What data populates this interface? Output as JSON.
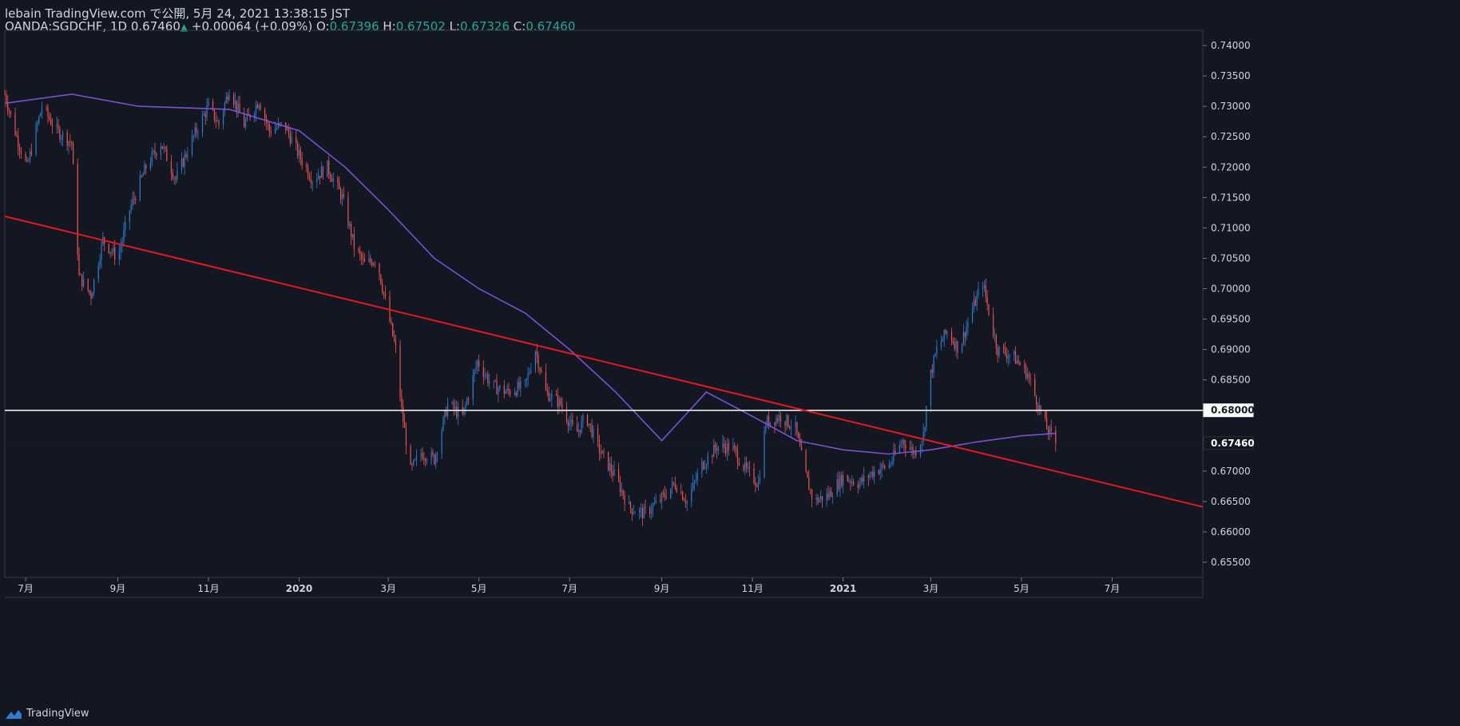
{
  "header": {
    "line1": "lebain TradingView.com で公開, 5月 24, 2021 13:38:15 JST",
    "symbol": "OANDA:SGDCHF, 1D",
    "last": "0.67460",
    "up_arrow": "▲",
    "change": "+0.00064 (+0.09%)",
    "o_label": "O:",
    "o_value": "0.67396",
    "h_label": "H:",
    "h_value": "0.67502",
    "l_label": "L:",
    "l_value": "0.67326",
    "c_label": "C:",
    "c_value": "0.67460"
  },
  "footer": {
    "brand": "TradingView"
  },
  "colors": {
    "background": "#131722",
    "up": "#2e7dd1",
    "down": "#ef5350",
    "ma": "#7b4fd6",
    "trendline": "#e8171f",
    "hline": "#ffffff",
    "grid_border": "#363a45"
  },
  "chart_data": {
    "type": "candlestick",
    "symbol": "OANDA:SGDCHF",
    "timeframe": "1D",
    "ylim": [
      0.6525,
      0.7425
    ],
    "y_ticks": [
      "0.74000",
      "0.73500",
      "0.73000",
      "0.72500",
      "0.72000",
      "0.71500",
      "0.71000",
      "0.70500",
      "0.70000",
      "0.69500",
      "0.69000",
      "0.68500",
      "0.68000",
      "0.67500",
      "0.67000",
      "0.66500",
      "0.66000",
      "0.65500"
    ],
    "x_range": [
      "2019-06-17",
      "2021-08-31"
    ],
    "x_ticks": [
      {
        "label": "7月",
        "date": "2019-07-01"
      },
      {
        "label": "9月",
        "date": "2019-09-01"
      },
      {
        "label": "11月",
        "date": "2019-11-01"
      },
      {
        "label": "2020",
        "date": "2020-01-01"
      },
      {
        "label": "3月",
        "date": "2020-03-01"
      },
      {
        "label": "5月",
        "date": "2020-05-01"
      },
      {
        "label": "7月",
        "date": "2020-07-01"
      },
      {
        "label": "9月",
        "date": "2020-09-01"
      },
      {
        "label": "11月",
        "date": "2020-11-01"
      },
      {
        "label": "2021",
        "date": "2021-01-01"
      },
      {
        "label": "3月",
        "date": "2021-03-01"
      },
      {
        "label": "5月",
        "date": "2021-05-01"
      },
      {
        "label": "7月",
        "date": "2021-07-01"
      }
    ],
    "close_path": [
      [
        "2019-06-17",
        0.732
      ],
      [
        "2019-06-25",
        0.725
      ],
      [
        "2019-07-02",
        0.72
      ],
      [
        "2019-07-12",
        0.73
      ],
      [
        "2019-07-22",
        0.726
      ],
      [
        "2019-08-01",
        0.724
      ],
      [
        "2019-08-06",
        0.702
      ],
      [
        "2019-08-14",
        0.699
      ],
      [
        "2019-08-22",
        0.708
      ],
      [
        "2019-09-01",
        0.705
      ],
      [
        "2019-09-09",
        0.713
      ],
      [
        "2019-09-20",
        0.72
      ],
      [
        "2019-09-30",
        0.724
      ],
      [
        "2019-10-10",
        0.718
      ],
      [
        "2019-10-20",
        0.724
      ],
      [
        "2019-11-01",
        0.73
      ],
      [
        "2019-11-08",
        0.727
      ],
      [
        "2019-11-15",
        0.733
      ],
      [
        "2019-11-25",
        0.727
      ],
      [
        "2019-12-05",
        0.731
      ],
      [
        "2019-12-12",
        0.726
      ],
      [
        "2019-12-22",
        0.727
      ],
      [
        "2020-01-01",
        0.722
      ],
      [
        "2020-01-10",
        0.718
      ],
      [
        "2020-01-20",
        0.72
      ],
      [
        "2020-01-30",
        0.715
      ],
      [
        "2020-02-07",
        0.707
      ],
      [
        "2020-02-14",
        0.704
      ],
      [
        "2020-02-22",
        0.705
      ],
      [
        "2020-02-28",
        0.698
      ],
      [
        "2020-03-06",
        0.69
      ],
      [
        "2020-03-10",
        0.68
      ],
      [
        "2020-03-16",
        0.67
      ],
      [
        "2020-03-23",
        0.673
      ],
      [
        "2020-04-01",
        0.672
      ],
      [
        "2020-04-10",
        0.681
      ],
      [
        "2020-04-20",
        0.679
      ],
      [
        "2020-04-30",
        0.688
      ],
      [
        "2020-05-10",
        0.684
      ],
      [
        "2020-05-20",
        0.683
      ],
      [
        "2020-06-01",
        0.684
      ],
      [
        "2020-06-08",
        0.69
      ],
      [
        "2020-06-15",
        0.683
      ],
      [
        "2020-06-25",
        0.681
      ],
      [
        "2020-07-05",
        0.676
      ],
      [
        "2020-07-12",
        0.679
      ],
      [
        "2020-07-22",
        0.673
      ],
      [
        "2020-08-01",
        0.669
      ],
      [
        "2020-08-10",
        0.664
      ],
      [
        "2020-08-20",
        0.663
      ],
      [
        "2020-08-30",
        0.665
      ],
      [
        "2020-09-10",
        0.668
      ],
      [
        "2020-09-18",
        0.665
      ],
      [
        "2020-09-28",
        0.671
      ],
      [
        "2020-10-08",
        0.674
      ],
      [
        "2020-10-18",
        0.674
      ],
      [
        "2020-10-28",
        0.67
      ],
      [
        "2020-11-05",
        0.668
      ],
      [
        "2020-11-10",
        0.678
      ],
      [
        "2020-11-20",
        0.679
      ],
      [
        "2020-11-30",
        0.677
      ],
      [
        "2020-12-06",
        0.67
      ],
      [
        "2020-12-12",
        0.665
      ],
      [
        "2020-12-22",
        0.666
      ],
      [
        "2021-01-01",
        0.669
      ],
      [
        "2021-01-12",
        0.668
      ],
      [
        "2021-01-22",
        0.67
      ],
      [
        "2021-02-01",
        0.671
      ],
      [
        "2021-02-10",
        0.675
      ],
      [
        "2021-02-18",
        0.673
      ],
      [
        "2021-02-24",
        0.676
      ],
      [
        "2021-02-28",
        0.685
      ],
      [
        "2021-03-05",
        0.69
      ],
      [
        "2021-03-12",
        0.693
      ],
      [
        "2021-03-20",
        0.69
      ],
      [
        "2021-03-28",
        0.696
      ],
      [
        "2021-04-05",
        0.701
      ],
      [
        "2021-04-10",
        0.695
      ],
      [
        "2021-04-15",
        0.69
      ],
      [
        "2021-04-25",
        0.689
      ],
      [
        "2021-05-05",
        0.686
      ],
      [
        "2021-05-12",
        0.681
      ],
      [
        "2021-05-18",
        0.677
      ],
      [
        "2021-05-24",
        0.6746
      ]
    ],
    "ma_path": [
      [
        "2019-06-17",
        0.7305
      ],
      [
        "2019-08-01",
        0.732
      ],
      [
        "2019-09-15",
        0.73
      ],
      [
        "2019-11-15",
        0.7295
      ],
      [
        "2020-01-01",
        0.726
      ],
      [
        "2020-02-01",
        0.72
      ],
      [
        "2020-03-01",
        0.713
      ],
      [
        "2020-04-01",
        0.705
      ],
      [
        "2020-05-01",
        0.7
      ],
      [
        "2020-06-01",
        0.696
      ],
      [
        "2020-07-01",
        0.69
      ],
      [
        "2020-08-01",
        0.683
      ],
      [
        "2020-09-01",
        0.675
      ],
      [
        "2020-10-01",
        0.683
      ],
      [
        "2020-11-01",
        0.679
      ],
      [
        "2020-12-01",
        0.675
      ],
      [
        "2021-01-01",
        0.6735
      ],
      [
        "2021-02-01",
        0.6728
      ],
      [
        "2021-03-01",
        0.6735
      ],
      [
        "2021-04-01",
        0.6748
      ],
      [
        "2021-05-01",
        0.6758
      ],
      [
        "2021-05-24",
        0.6762
      ]
    ],
    "trendline": {
      "from": [
        "2019-06-17",
        0.7119
      ],
      "to": [
        "2021-08-31",
        0.6641
      ]
    },
    "hline": 0.68,
    "price_labels": [
      {
        "value": 0.68,
        "text": "0.68000",
        "style": "white"
      },
      {
        "value": 0.6746,
        "text": "0.67460",
        "style": "dark"
      }
    ],
    "grid": false,
    "legend": "none"
  }
}
